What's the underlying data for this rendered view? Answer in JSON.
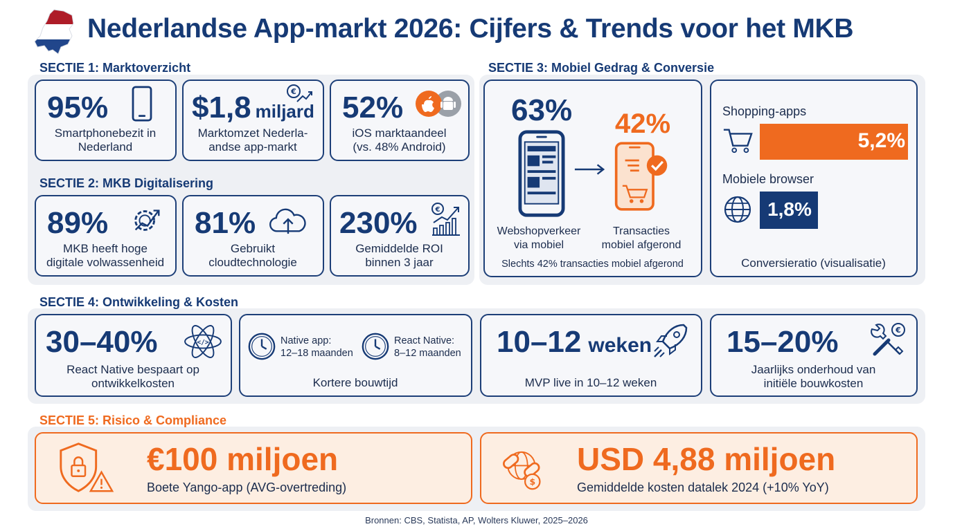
{
  "header": {
    "title": "Nederlandse App-markt 2026: Cijfers & Trends voor het MKB",
    "flag_icon": "netherlands-flag-map-icon"
  },
  "colors": {
    "navy": "#163a75",
    "orange": "#ef6a1f",
    "card_bg": "#f6f7fa",
    "section_bg": "#eef0f4",
    "orange_bg": "#fdeee2"
  },
  "section1": {
    "title": "SECTIE 1: Marktoverzicht",
    "cards": [
      {
        "value": "95%",
        "caption1": "Smartphonebezit in",
        "caption2": "Nederland",
        "icon": "smartphone-icon"
      },
      {
        "value": "$1,8",
        "suffix": "miljard",
        "caption1": "Marktomzet Nederla-",
        "caption2": "andse app-markt",
        "icon": "euro-growth-icon"
      },
      {
        "value": "52%",
        "caption1": "iOS marktaandeel",
        "caption2": "(vs. 48% Android)",
        "icon": "apple-android-icon"
      }
    ]
  },
  "section2": {
    "title": "SECTIE 2: MKB Digitalisering",
    "cards": [
      {
        "value": "89%",
        "caption1": "MKB heeft hoge",
        "caption2": "digitale volwassenheid",
        "icon": "gear-growth-icon"
      },
      {
        "value": "81%",
        "caption1": "Gebruikt",
        "caption2": "cloudtechnologie",
        "icon": "cloud-upload-icon"
      },
      {
        "value": "230%",
        "caption1": "Gemiddelde ROI",
        "caption2": "binnen 3 jaar",
        "icon": "euro-chart-icon"
      }
    ]
  },
  "section3": {
    "title": "SECTIE 3: Mobiel Gedrag & Conversie",
    "traffic": {
      "value_mobile": "63%",
      "value_transactions": "42%",
      "label_mobile1": "Webshopverkeer",
      "label_mobile2": "via mobiel",
      "label_tx1": "Transacties",
      "label_tx2": "mobiel afgerond",
      "note": "Slechts 42% transacties mobiel afgerond"
    },
    "conversion": {
      "shopping_label": "Shopping-apps",
      "shopping_value": "5,2%",
      "shopping_fraction": 0.052,
      "browser_label": "Mobiele browser",
      "browser_value": "1,8%",
      "browser_fraction": 0.018,
      "caption": "Conversieratio (visualisatie)"
    }
  },
  "section4": {
    "title": "SECTIE 4: Ontwikkeling & Kosten",
    "react": {
      "value": "30–40%",
      "caption1": "React Native bespaart op",
      "caption2": "ontwikkelkosten",
      "icon": "react-atom-icon"
    },
    "buildtime": {
      "native_label": "Native app:",
      "native_value": "12–18 maanden",
      "rn_label": "React Native:",
      "rn_value": "8–12 maanden",
      "caption": "Kortere bouwtijd"
    },
    "mvp": {
      "value": "10–12",
      "suffix": "weken",
      "caption": "MVP live in 10–12 weken",
      "icon": "rocket-icon"
    },
    "maintenance": {
      "value": "15–20%",
      "caption1": "Jaarlijks onderhoud van",
      "caption2": "initiële bouwkosten",
      "icon": "tools-euro-icon"
    }
  },
  "section5": {
    "title": "SECTIE 5: Risico & Compliance",
    "fine": {
      "value": "€100 miljoen",
      "caption": "Boete Yango-app (AVG-overtreding)",
      "icon": "shield-lock-warning-icon"
    },
    "breach": {
      "value": "USD 4,88 miljoen",
      "caption": "Gemiddelde kosten datalek 2024 (+10% YoY)",
      "icon": "broken-link-globe-icon"
    }
  },
  "footer": {
    "sources": "Bronnen: CBS, Statista, AP, Wolters Kluwer, 2025–2026"
  }
}
